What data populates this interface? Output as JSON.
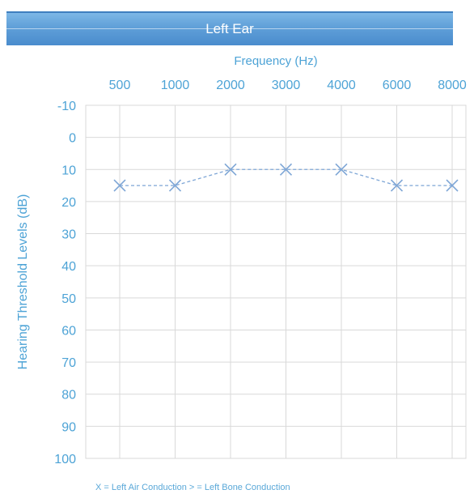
{
  "title": "Left Ear",
  "colors": {
    "title_bar": "#5f9fd8",
    "text_accent": "#4da3d6",
    "series": "#7ea6d6",
    "grid": "#d9d9d9"
  },
  "chart_data": {
    "type": "line",
    "title": "Left Ear",
    "xlabel": "Frequency (Hz)",
    "ylabel": "Hearing Threshold Levels (dB)",
    "x_axis_position": "top",
    "categories": [
      "500",
      "1000",
      "2000",
      "3000",
      "4000",
      "6000",
      "8000"
    ],
    "y_ticks": [
      "-10",
      "0",
      "10",
      "20",
      "30",
      "40",
      "50",
      "60",
      "70",
      "80",
      "90",
      "100"
    ],
    "ylim": [
      -10,
      100
    ],
    "y_inverted": true,
    "grid": true,
    "series": [
      {
        "name": "Left Air Conduction",
        "marker": "X",
        "line_style": "dashed",
        "values": [
          15,
          15,
          10,
          10,
          10,
          15,
          15
        ]
      }
    ],
    "legend": "X = Left Air Conduction   > = Left Bone Conduction"
  }
}
